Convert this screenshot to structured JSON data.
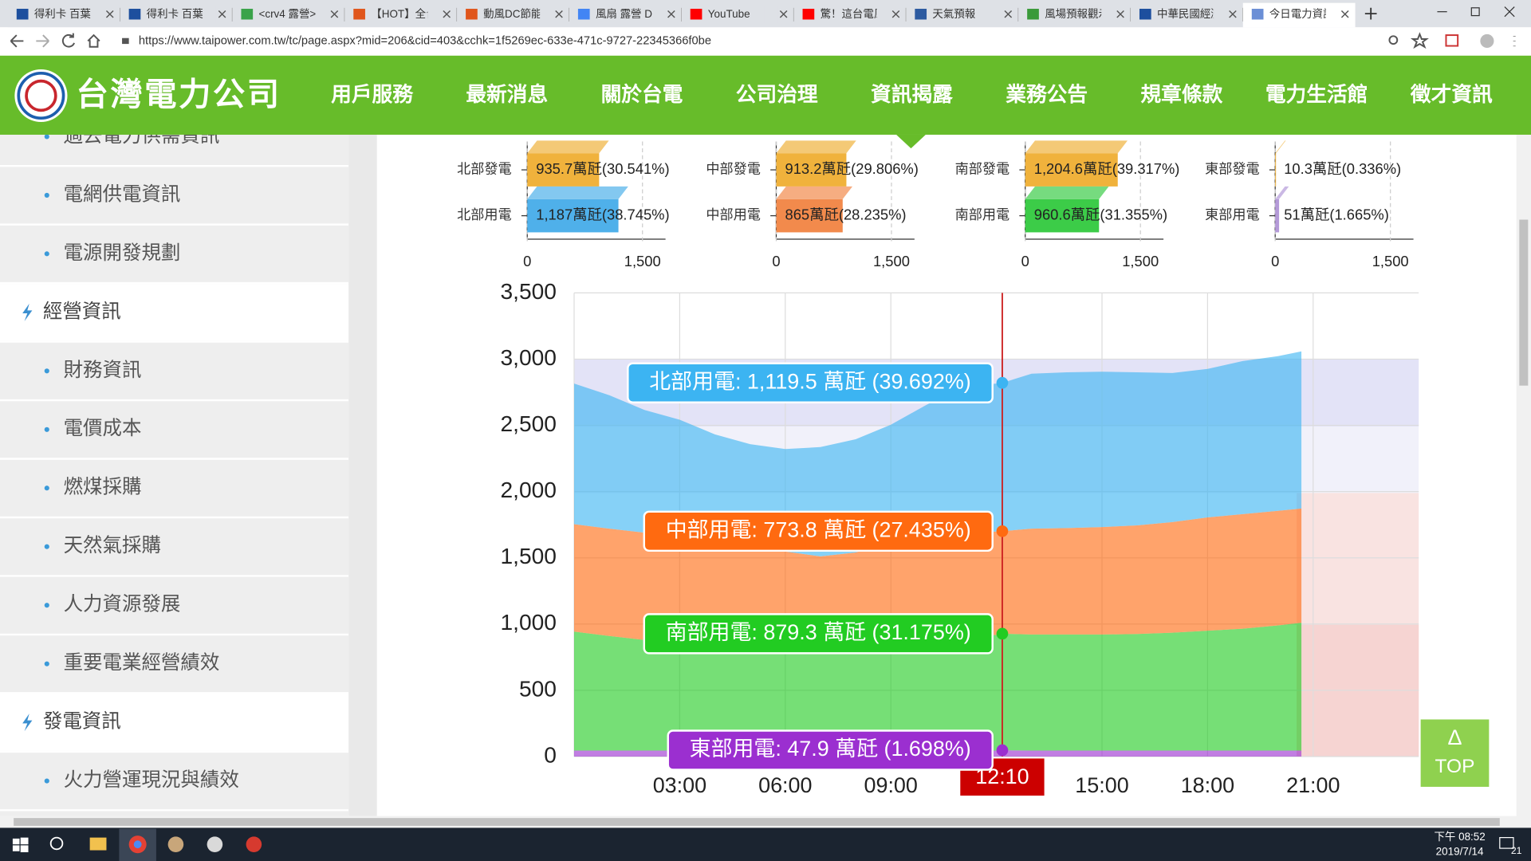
{
  "browser": {
    "tabs": [
      "得利卡 百葉窗",
      "得利卡 百葉窗",
      "<crv4 露營> ",
      "【HOT】全台",
      "動風DC節能",
      "風扇 露營 DIY",
      "YouTube",
      "驚！這台電風",
      "天氣預報",
      "風場預報觀示",
      "中華民國經濟",
      "今日電力資訊"
    ],
    "url": "https://www.taipower.com.tw/tc/page.aspx?mid=206&cid=403&cchk=1f5269ec-633e-471c-9727-22345366f0be"
  },
  "site": {
    "logo": "台灣電力公司",
    "nav": [
      "用戶服務",
      "最新消息",
      "關於台電",
      "公司治理",
      "資訊揭露",
      "業務公告",
      "規章條款",
      "電力生活館",
      "徵才資訊"
    ]
  },
  "sidebar": [
    {
      "text": "過去電力供需資訊",
      "level": 2
    },
    {
      "text": "電網供電資訊",
      "level": 2
    },
    {
      "text": "電源開發規劃",
      "level": 2
    },
    {
      "text": "經營資訊",
      "level": 1
    },
    {
      "text": "財務資訊",
      "level": 2
    },
    {
      "text": "電價成本",
      "level": 2
    },
    {
      "text": "燃煤採購",
      "level": 2
    },
    {
      "text": "天然氣採購",
      "level": 2
    },
    {
      "text": "人力資源發展",
      "level": 2
    },
    {
      "text": "重要電業經營績效",
      "level": 2
    },
    {
      "text": "發電資訊",
      "level": 1
    },
    {
      "text": "火力營運現況與績效",
      "level": 2
    }
  ],
  "top_button": {
    "arrow": "Δ",
    "label": "TOP"
  },
  "taskbar": {
    "time": "下午 08:52",
    "date": "2019/7/14",
    "notifications": "21"
  },
  "chart_data": [
    {
      "type": "bar",
      "categories": [
        "北部發電",
        "北部用電"
      ],
      "values": [
        935.7,
        1187
      ],
      "value_labels": [
        "935.7萬瓩(30.541%)",
        "1,187萬瓩(38.745%)"
      ],
      "colors": [
        "#f0b23c",
        "#4fb0ea"
      ],
      "xlim": [
        0,
        1800
      ],
      "xticks": [
        0,
        {
          "value": 1500,
          "label": "1,500"
        }
      ]
    },
    {
      "type": "bar",
      "categories": [
        "中部發電",
        "中部用電"
      ],
      "values": [
        913.2,
        865
      ],
      "value_labels": [
        "913.2萬瓩(29.806%)",
        "865萬瓩(28.235%)"
      ],
      "colors": [
        "#f0b23c",
        "#f28a4c"
      ],
      "xlim": [
        0,
        1800
      ],
      "xticks": [
        0,
        {
          "value": 1500,
          "label": "1,500"
        }
      ]
    },
    {
      "type": "bar",
      "categories": [
        "南部發電",
        "南部用電"
      ],
      "values": [
        1204.6,
        960.6
      ],
      "value_labels": [
        "1,204.6萬瓩(39.317%)",
        "960.6萬瓩(31.355%)"
      ],
      "colors": [
        "#f0b23c",
        "#3ccc48"
      ],
      "xlim": [
        0,
        1800
      ],
      "xticks": [
        0,
        {
          "value": 1500,
          "label": "1,500"
        }
      ]
    },
    {
      "type": "bar",
      "categories": [
        "東部發電",
        "東部用電"
      ],
      "values": [
        10.3,
        51
      ],
      "value_labels": [
        "10.3萬瓩(0.336%)",
        "51萬瓩(1.665%)"
      ],
      "colors": [
        "#f0b23c",
        "#b49ad8"
      ],
      "xlim": [
        0,
        1800
      ],
      "xticks": [
        0,
        {
          "value": 1500,
          "label": "1,500"
        }
      ]
    },
    {
      "type": "area",
      "stacked": true,
      "grid": true,
      "x": [
        0,
        1,
        2,
        3,
        4,
        5,
        6,
        7,
        8,
        9,
        10,
        11,
        12,
        12.1667,
        13,
        14,
        15,
        16,
        17,
        18,
        19,
        20,
        20.6667
      ],
      "series": [
        {
          "label": "東部用電: 47.9 萬瓩 (1.698%)",
          "color": "#9b2fd0",
          "values": [
            45,
            45,
            45,
            45,
            45,
            45,
            45,
            45,
            45,
            45,
            45,
            45,
            45,
            47.9,
            45,
            45,
            45,
            45,
            45,
            45,
            45,
            45,
            45
          ]
        },
        {
          "label": "南部用電: 879.3 萬瓩 (31.175%)",
          "color": "#22cc22",
          "values": [
            898,
            865,
            835,
            802,
            775,
            755,
            744,
            747,
            760,
            790,
            825,
            855,
            873,
            879.3,
            876,
            876,
            876,
            880,
            890,
            905,
            920,
            945,
            965
          ]
        },
        {
          "label": "中部用電: 773.8 萬瓩 (27.435%)",
          "color": "#ff6a10",
          "values": [
            811,
            810,
            810,
            811,
            800,
            780,
            759,
            719,
            735,
            786,
            800,
            790,
            780,
            773.8,
            799,
            804,
            811,
            820,
            835,
            855,
            865,
            865,
            862
          ]
        },
        {
          "label": "北部用電: 1,119.5 萬瓩 (39.692%)",
          "color": "#3cb4f2",
          "values": [
            1061,
            1007,
            926,
            884,
            812,
            778,
            773,
            825,
            855,
            884,
            983,
            1100,
            1117,
            1119.5,
            1170,
            1175,
            1173,
            1155,
            1125,
            1121,
            1155,
            1167,
            1186
          ]
        }
      ],
      "xlim": [
        0,
        24
      ],
      "ylim": [
        0,
        3500
      ],
      "xticks": [
        {
          "value": 3,
          "label": "03:00"
        },
        {
          "value": 6,
          "label": "06:00"
        },
        {
          "value": 9,
          "label": "09:00"
        },
        {
          "value": 15,
          "label": "15:00"
        },
        {
          "value": 18,
          "label": "18:00"
        },
        {
          "value": 21,
          "label": "21:00"
        }
      ],
      "yticks": [
        0,
        500,
        {
          "value": 1000,
          "label": "1,000"
        },
        {
          "value": 1500,
          "label": "1,500"
        },
        {
          "value": 2000,
          "label": "2,000"
        },
        {
          "value": 2500,
          "label": "2,500"
        },
        {
          "value": 3000,
          "label": "3,000"
        },
        {
          "value": 3500,
          "label": "3,500"
        }
      ],
      "crosshair": {
        "value": 12.1667,
        "label": "12:10"
      }
    }
  ]
}
